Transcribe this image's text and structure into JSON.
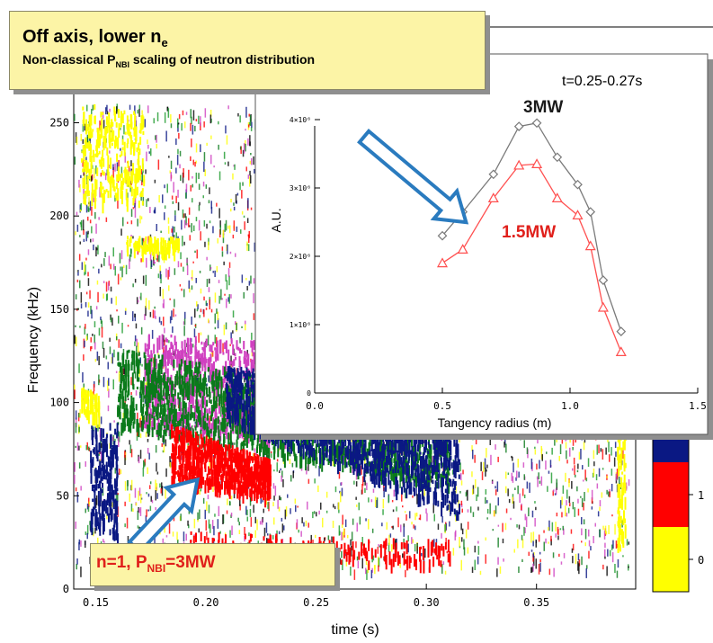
{
  "spectrogram": {
    "xlabel": "time (s)",
    "ylabel": "Frequency (kHz)",
    "x_ticks": [
      0.15,
      0.2,
      0.25,
      0.3,
      0.35
    ],
    "y_ticks": [
      0,
      50,
      100,
      150,
      200,
      250
    ],
    "xlim": [
      0.14,
      0.395
    ],
    "ylim": [
      0,
      270
    ],
    "colorbar": {
      "labels": [
        "0",
        "1"
      ],
      "colors": {
        "yellow": "#ffff00",
        "red": "#ff0000",
        "navy": "#0a1883",
        "green": "#0a7a1a",
        "magenta": "#d040c0"
      }
    }
  },
  "callouts": {
    "top_title": "Off axis, lower n",
    "top_title_sub": "e",
    "top_line_prefix": "Non-classical P",
    "top_line_sub": "NBI",
    "top_line_suffix": " scaling of neutron distribution",
    "bottom_prefix": "n=1, P",
    "bottom_sub": "NBI",
    "bottom_suffix": "=3MW"
  },
  "chart_data": {
    "type": "line",
    "time_label": "t=0.25-0.27s",
    "xlabel": "Tangency radius (m)",
    "ylabel": "A.U.",
    "xlim": [
      0.0,
      1.5
    ],
    "ylim": [
      0,
      4500000
    ],
    "x_ticks": [
      "0.0",
      "0.5",
      "1.0",
      "1.5"
    ],
    "y_ticks": [
      "0",
      "1×10⁶",
      "2×10⁶",
      "3×10⁶",
      "4×10⁶"
    ],
    "y_tick_values": [
      0,
      1000000,
      2000000,
      3000000,
      4000000
    ],
    "x_tick_values": [
      0.0,
      0.5,
      1.0,
      1.5
    ],
    "series": [
      {
        "name": "3MW",
        "color": "#7a7a7a",
        "label_color": "#1a1a1a",
        "marker": "diamond",
        "x": [
          0.5,
          0.58,
          0.7,
          0.8,
          0.87,
          0.95,
          1.03,
          1.08,
          1.13,
          1.2
        ],
        "y": [
          2300000,
          2650000,
          3200000,
          3900000,
          3950000,
          3450000,
          3050000,
          2650000,
          1650000,
          900000
        ]
      },
      {
        "name": "1.5MW",
        "color": "#ff5050",
        "label_color": "#e0201b",
        "marker": "triangle",
        "x": [
          0.5,
          0.58,
          0.7,
          0.8,
          0.87,
          0.95,
          1.03,
          1.08,
          1.13,
          1.2
        ],
        "y": [
          1900000,
          2100000,
          2850000,
          3330000,
          3350000,
          2850000,
          2600000,
          2150000,
          1250000,
          600000
        ]
      }
    ]
  }
}
